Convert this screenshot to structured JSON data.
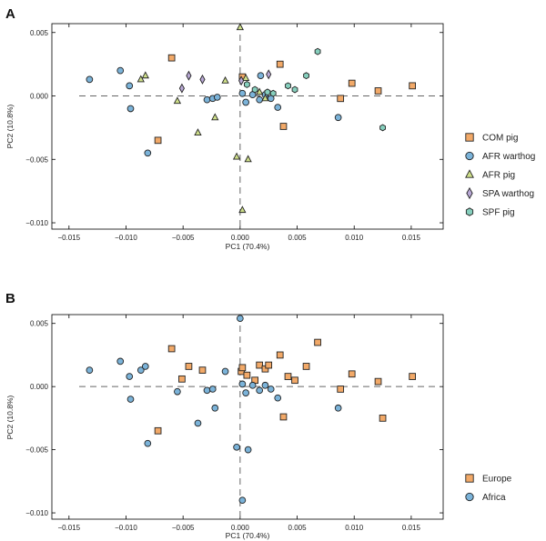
{
  "colors": {
    "COM": "#f2a968",
    "AFR_warthog": "#7bb3d9",
    "AFR_pig": "#cfe08a",
    "SPA": "#b9a9d6",
    "SPF": "#86cfbd",
    "Europe": "#f2a968",
    "Africa": "#7bb3d9"
  },
  "chart_data": [
    {
      "panel": "A",
      "type": "scatter",
      "xlabel": "PC1 (70.4%)",
      "ylabel": "PC2 (10.8%)",
      "xlim": [
        -0.0165,
        0.0178
      ],
      "ylim": [
        -0.0105,
        0.0057
      ],
      "xticks": [
        -0.015,
        -0.01,
        -0.005,
        0.0,
        0.005,
        0.01,
        0.015
      ],
      "xtick_labels": [
        "−0.015",
        "−0.010",
        "−0.005",
        "0.000",
        "0.005",
        "0.010",
        "0.015"
      ],
      "yticks": [
        0.005,
        0.0,
        -0.005,
        -0.01
      ],
      "ytick_labels": [
        "0.005",
        "0.000",
        "−0.005",
        "−0.010"
      ],
      "reference_lines": {
        "x": 0,
        "y": 0
      },
      "legend_position": "right",
      "series": [
        {
          "name": "COM pig",
          "marker": "square",
          "color_key": "COM",
          "points": [
            [
              -0.006,
              0.003
            ],
            [
              -0.0072,
              -0.0035
            ],
            [
              0.0002,
              0.0015
            ],
            [
              0.0035,
              0.0025
            ],
            [
              0.0038,
              -0.0024
            ],
            [
              0.0088,
              -0.0002
            ],
            [
              0.0098,
              0.001
            ],
            [
              0.0121,
              0.0004
            ],
            [
              0.0151,
              0.0008
            ]
          ]
        },
        {
          "name": "AFR warthog",
          "marker": "circle",
          "color_key": "AFR_warthog",
          "points": [
            [
              -0.0132,
              0.0013
            ],
            [
              -0.0105,
              0.002
            ],
            [
              -0.0097,
              0.0008
            ],
            [
              -0.0096,
              -0.001
            ],
            [
              -0.0081,
              -0.0045
            ],
            [
              -0.0029,
              -0.0003
            ],
            [
              -0.0024,
              -0.0002
            ],
            [
              -0.002,
              -0.0001
            ],
            [
              0.0002,
              0.0002
            ],
            [
              0.0005,
              -0.0005
            ],
            [
              0.0011,
              0.0001
            ],
            [
              0.0017,
              -0.0003
            ],
            [
              0.0018,
              0.0016
            ],
            [
              0.0022,
              0.0001
            ],
            [
              0.0027,
              -0.0002
            ],
            [
              0.0033,
              -0.0009
            ],
            [
              0.0086,
              -0.0017
            ]
          ]
        },
        {
          "name": "AFR pig",
          "marker": "triangle",
          "color_key": "AFR_pig",
          "points": [
            [
              0.0,
              0.0054
            ],
            [
              -0.0087,
              0.0013
            ],
            [
              -0.0083,
              0.0016
            ],
            [
              -0.0055,
              -0.0004
            ],
            [
              -0.0037,
              -0.0029
            ],
            [
              -0.0022,
              -0.0017
            ],
            [
              -0.0013,
              0.0012
            ],
            [
              0.0005,
              0.0014
            ],
            [
              0.0017,
              0.0003
            ],
            [
              -0.0003,
              -0.0048
            ],
            [
              0.0007,
              -0.005
            ],
            [
              0.0002,
              -0.009
            ],
            [
              0.0022,
              -0.0002
            ]
          ]
        },
        {
          "name": "SPA warthog",
          "marker": "diamond",
          "color_key": "SPA",
          "points": [
            [
              -0.0051,
              0.0006
            ],
            [
              -0.0045,
              0.0016
            ],
            [
              -0.0033,
              0.0013
            ],
            [
              0.0001,
              0.0012
            ],
            [
              0.0025,
              0.0017
            ]
          ]
        },
        {
          "name": "SPF pig",
          "marker": "hexagon",
          "color_key": "SPF",
          "points": [
            [
              0.0006,
              0.0009
            ],
            [
              0.0013,
              0.0005
            ],
            [
              0.0024,
              0.0003
            ],
            [
              0.0029,
              0.0002
            ],
            [
              0.0042,
              0.0008
            ],
            [
              0.0048,
              0.0005
            ],
            [
              0.0058,
              0.0016
            ],
            [
              0.0068,
              0.0035
            ],
            [
              0.0125,
              -0.0025
            ]
          ]
        }
      ]
    },
    {
      "panel": "B",
      "type": "scatter",
      "xlabel": "PC1 (70.4%)",
      "ylabel": "PC2 (10.8%)",
      "xlim": [
        -0.0165,
        0.0178
      ],
      "ylim": [
        -0.0105,
        0.0057
      ],
      "xticks": [
        -0.015,
        -0.01,
        -0.005,
        0.0,
        0.005,
        0.01,
        0.015
      ],
      "xtick_labels": [
        "−0.015",
        "−0.010",
        "−0.005",
        "0.000",
        "0.005",
        "0.010",
        "0.015"
      ],
      "yticks": [
        0.005,
        0.0,
        -0.005,
        -0.01
      ],
      "ytick_labels": [
        "0.005",
        "0.000",
        "−0.005",
        "−0.010"
      ],
      "reference_lines": {
        "x": 0,
        "y": 0
      },
      "legend_position": "bottom-right",
      "series": [
        {
          "name": "Europe",
          "marker": "square",
          "color_key": "Europe",
          "points": [
            [
              -0.006,
              0.003
            ],
            [
              -0.0072,
              -0.0035
            ],
            [
              -0.0051,
              0.0006
            ],
            [
              -0.0045,
              0.0016
            ],
            [
              -0.0033,
              0.0013
            ],
            [
              0.0001,
              0.0012
            ],
            [
              0.0002,
              0.0015
            ],
            [
              0.0006,
              0.0009
            ],
            [
              0.0013,
              0.0005
            ],
            [
              0.0017,
              0.0017
            ],
            [
              0.0022,
              0.0014
            ],
            [
              0.0025,
              0.0017
            ],
            [
              0.0035,
              0.0025
            ],
            [
              0.0038,
              -0.0024
            ],
            [
              0.0042,
              0.0008
            ],
            [
              0.0048,
              0.0005
            ],
            [
              0.0058,
              0.0016
            ],
            [
              0.0068,
              0.0035
            ],
            [
              0.0088,
              -0.0002
            ],
            [
              0.0098,
              0.001
            ],
            [
              0.0121,
              0.0004
            ],
            [
              0.0125,
              -0.0025
            ],
            [
              0.0151,
              0.0008
            ]
          ]
        },
        {
          "name": "Africa",
          "marker": "circle",
          "color_key": "Africa",
          "points": [
            [
              -0.0132,
              0.0013
            ],
            [
              -0.0105,
              0.002
            ],
            [
              -0.0097,
              0.0008
            ],
            [
              -0.0096,
              -0.001
            ],
            [
              -0.0087,
              0.0013
            ],
            [
              -0.0083,
              0.0016
            ],
            [
              -0.0081,
              -0.0045
            ],
            [
              -0.0055,
              -0.0004
            ],
            [
              -0.0037,
              -0.0029
            ],
            [
              -0.0029,
              -0.0003
            ],
            [
              -0.0024,
              -0.0002
            ],
            [
              -0.0022,
              -0.0017
            ],
            [
              -0.0013,
              0.0012
            ],
            [
              0.0,
              0.0054
            ],
            [
              0.0002,
              0.0002
            ],
            [
              0.0005,
              -0.0005
            ],
            [
              0.0011,
              0.0001
            ],
            [
              0.0017,
              -0.0003
            ],
            [
              0.0022,
              0.0001
            ],
            [
              0.0027,
              -0.0002
            ],
            [
              0.0033,
              -0.0009
            ],
            [
              0.0086,
              -0.0017
            ],
            [
              -0.0003,
              -0.0048
            ],
            [
              0.0007,
              -0.005
            ],
            [
              0.0002,
              -0.009
            ]
          ]
        }
      ]
    }
  ]
}
